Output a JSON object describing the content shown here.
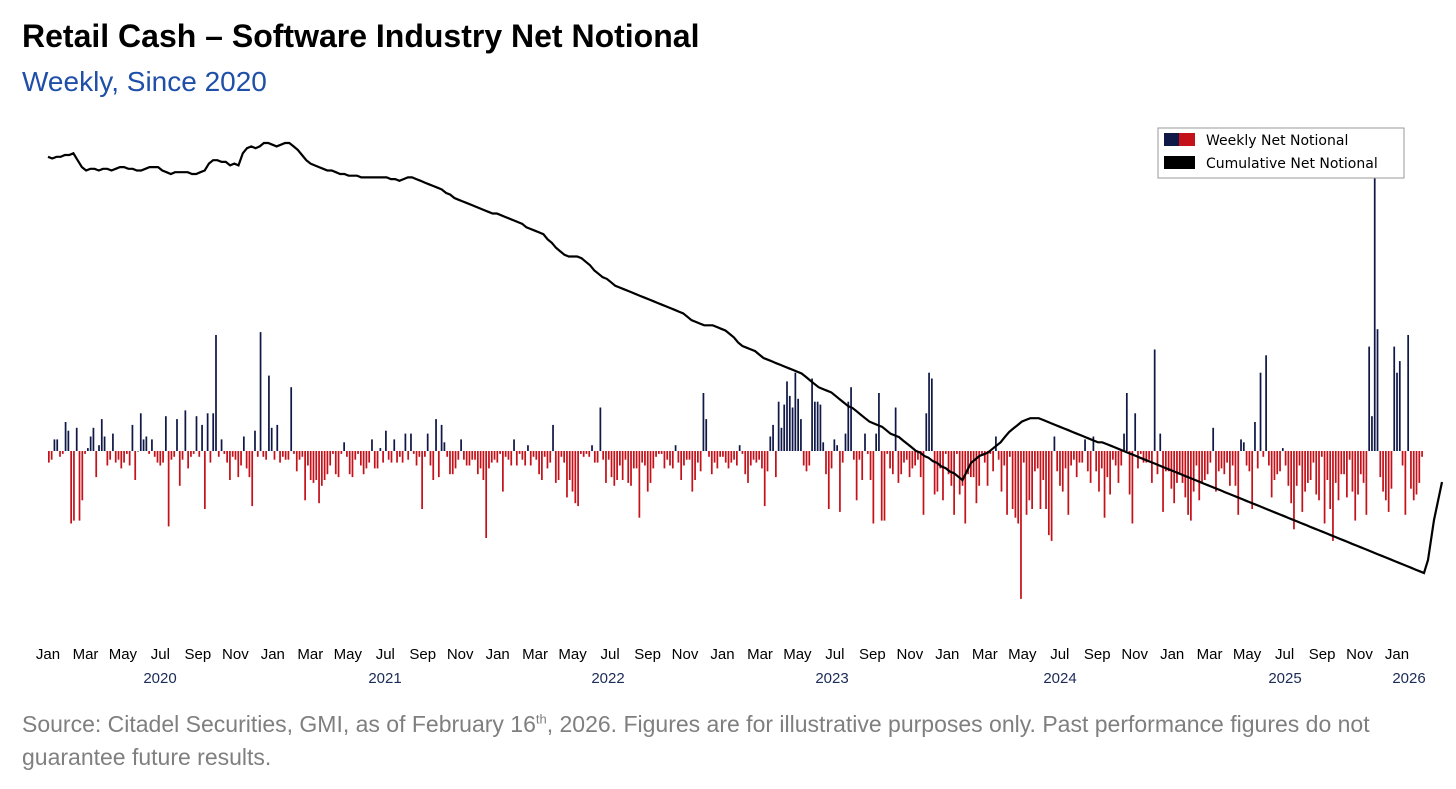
{
  "colors": {
    "positive_bar": "#0f1846",
    "negative_bar": "#c4121a",
    "line": "#000000",
    "title": "#000000",
    "subtitle": "#1f4fa8",
    "footnote": "#7f7f7f"
  },
  "chart_data": {
    "type": "bar+line",
    "title": "Retail Cash – Software Industry Net Notional",
    "subtitle": "Weekly, Since 2020",
    "legend": {
      "placement": "top-right",
      "entries": [
        "Weekly Net Notional",
        "Cumulative Net Notional"
      ]
    },
    "x_axis": {
      "month_ticks": [
        "Jan",
        "Mar",
        "May",
        "Jul",
        "Sep",
        "Nov",
        "Jan",
        "Mar",
        "May",
        "Jul",
        "Sep",
        "Nov",
        "Jan",
        "Mar",
        "May",
        "Jul",
        "Sep",
        "Nov",
        "Jan",
        "Mar",
        "May",
        "Jul",
        "Sep",
        "Nov",
        "Jan",
        "Mar",
        "May",
        "Jul",
        "Sep",
        "Nov",
        "Jan",
        "Mar",
        "May",
        "Jul",
        "Sep",
        "Nov",
        "Jan"
      ],
      "year_ticks": [
        "2020",
        "2021",
        "2022",
        "2023",
        "2024",
        "2025",
        "2026"
      ],
      "range_weeks": [
        0,
        317
      ]
    },
    "y_axis": {
      "visible": false,
      "bars_range": [
        -100,
        100
      ],
      "line_range": [
        -100,
        100
      ],
      "grid": false
    },
    "series": [
      {
        "name": "Weekly Net Notional",
        "type": "bar",
        "note": "approximate relative values, 1 bar per week",
        "values": [
          -4,
          -3,
          4,
          4,
          -2,
          -1,
          10,
          7,
          -25,
          -24,
          8,
          -24,
          -17,
          -1,
          1,
          5,
          8,
          -9,
          2,
          11,
          5,
          -5,
          -3,
          6,
          -4,
          -3,
          -6,
          -4,
          -1,
          -5,
          9,
          -10,
          0,
          13,
          4,
          5,
          -1,
          4,
          -2,
          -4,
          -5,
          -4,
          12,
          -26,
          -3,
          -2,
          11,
          -12,
          -3,
          14,
          -6,
          -2,
          -1,
          12,
          -2,
          9,
          -20,
          13,
          -4,
          13,
          40,
          -2,
          4,
          -1,
          -4,
          -10,
          -2,
          -3,
          -9,
          -5,
          5,
          -6,
          -9,
          -19,
          7,
          -2,
          41,
          -2,
          -3,
          26,
          8,
          -3,
          9,
          -4,
          -2,
          -3,
          -3,
          22,
          -1,
          -7,
          -3,
          -2,
          -17,
          -5,
          -10,
          -11,
          -10,
          -18,
          -12,
          -10,
          -8,
          -5,
          -1,
          -8,
          -9,
          -1,
          3,
          -2,
          -8,
          -9,
          -3,
          -1,
          -5,
          -8,
          -6,
          -4,
          4,
          -6,
          -6,
          1,
          -4,
          7,
          -3,
          -4,
          4,
          -4,
          -2,
          -4,
          6,
          -3,
          6,
          -1,
          -5,
          -2,
          -20,
          -2,
          6,
          -5,
          -10,
          11,
          -9,
          9,
          3,
          -2,
          -8,
          -8,
          -6,
          -3,
          4,
          -3,
          -5,
          -5,
          -3,
          -3,
          -8,
          -6,
          -10,
          -30,
          -6,
          -4,
          -3,
          -4,
          -1,
          -14,
          -2,
          -3,
          -5,
          4,
          -5,
          -1,
          -3,
          -5,
          2,
          -5,
          -2,
          -3,
          -8,
          -10,
          -2,
          -6,
          -4,
          9,
          -11,
          -10,
          -2,
          -4,
          -16,
          -10,
          -14,
          -18,
          -19,
          -1,
          -2,
          -1,
          -2,
          2,
          -4,
          -4,
          15,
          -3,
          -11,
          -3,
          -9,
          -12,
          -10,
          -5,
          -10,
          -3,
          -11,
          -12,
          -6,
          -6,
          -23,
          -4,
          -5,
          -14,
          -11,
          -6,
          -2,
          -1,
          -1,
          -6,
          -3,
          -5,
          -6,
          2,
          -4,
          -10,
          -5,
          -3,
          -3,
          -14,
          -10,
          -4,
          -7,
          20,
          11,
          -2,
          -8,
          -4,
          -6,
          -2,
          -2,
          -4,
          -6,
          -4,
          -3,
          -5,
          2,
          -1,
          -8,
          -11,
          -5,
          -3,
          -4,
          -3,
          -6,
          -19,
          -7,
          5,
          9,
          -9,
          17,
          8,
          16,
          24,
          19,
          15,
          27,
          18,
          11,
          -5,
          -7,
          -5,
          25,
          17,
          17,
          16,
          3,
          -8,
          -20,
          -6,
          4,
          2,
          -21,
          -4,
          6,
          17,
          22,
          -3,
          -17,
          -3,
          -10,
          6,
          -1,
          -10,
          -25,
          6,
          20,
          -24,
          -24,
          -1,
          -6,
          -8,
          15,
          -11,
          -8,
          -4,
          -3,
          -9,
          -6,
          -5,
          -3,
          -9,
          -22,
          13,
          27,
          25,
          -15,
          -14,
          -6,
          -17,
          -1,
          -8,
          -12,
          -22,
          -1,
          -15,
          -12,
          -25,
          -8,
          -9,
          -9,
          -18,
          -12,
          -1,
          -4,
          -12,
          -1,
          -7,
          5,
          -3,
          -14,
          -5,
          -22,
          -2,
          -20,
          -23,
          -25,
          -51,
          -4,
          -22,
          -17,
          -20,
          -7,
          -6,
          -20,
          -10,
          -20,
          -29,
          -31,
          5,
          -7,
          -12,
          -14,
          -6,
          -22,
          -5,
          -3,
          -9,
          -4,
          -4,
          4,
          -7,
          -11,
          5,
          -7,
          -14,
          -6,
          -23,
          -9,
          -15,
          -3,
          -5,
          -11,
          -5,
          6,
          20,
          -15,
          -25,
          13,
          -6,
          -1,
          -4,
          -4,
          -3,
          -11,
          35,
          -8,
          6,
          -21,
          -7,
          -7,
          -13,
          -18,
          -11,
          -8,
          -11,
          -16,
          -22,
          -24,
          -14,
          -5,
          -17,
          -11,
          -10,
          -8,
          -4,
          8,
          -14,
          -7,
          -6,
          -8,
          -4,
          -12,
          -5,
          -12,
          -22,
          4,
          3,
          -5,
          -7,
          -20,
          10,
          -6,
          27,
          -2,
          33,
          -5,
          -16,
          -10,
          -8,
          -7,
          1,
          -5,
          -12,
          -18,
          -27,
          -12,
          -5,
          -21,
          -14,
          -11,
          -10,
          -4,
          -15,
          -17,
          -2,
          -25,
          -10,
          -20,
          -31,
          -11,
          -17,
          -8,
          -8,
          -16,
          -3,
          -14,
          -24,
          -15,
          -8,
          -11,
          -22,
          36,
          12,
          100,
          42,
          -9,
          -14,
          -17,
          -21,
          -13,
          36,
          27,
          31,
          -5,
          -22,
          40,
          -13,
          -17,
          -15,
          -11,
          -2
        ]
      },
      {
        "name": "Cumulative Net Notional",
        "type": "line",
        "note": "approximate relative values, sampled weekly",
        "values": [
          88,
          87,
          88,
          88,
          89,
          89,
          90,
          86,
          82,
          80,
          81,
          81,
          80,
          81,
          81,
          80,
          81,
          82,
          82,
          81,
          81,
          80,
          80,
          81,
          82,
          82,
          82,
          80,
          79,
          78,
          79,
          79,
          79,
          79,
          78,
          78,
          79,
          80,
          84,
          86,
          86,
          85,
          85,
          83,
          84,
          83,
          90,
          93,
          94,
          93,
          94,
          96,
          96,
          95,
          94,
          95,
          96,
          96,
          94,
          92,
          89,
          86,
          84,
          83,
          82,
          81,
          80,
          80,
          79,
          78,
          78,
          77,
          77,
          77,
          76,
          76,
          76,
          76,
          76,
          76,
          76,
          75,
          75,
          74,
          75,
          76,
          76,
          75,
          74,
          73,
          72,
          71,
          70,
          69,
          67,
          66,
          64,
          63,
          62,
          61,
          60,
          59,
          58,
          57,
          56,
          55,
          55,
          54,
          53,
          52,
          51,
          50,
          49,
          47,
          46,
          45,
          44,
          43,
          40,
          38,
          35,
          33,
          31,
          30,
          30,
          30,
          29,
          27,
          25,
          22,
          20,
          18,
          17,
          15,
          13,
          12,
          11,
          10,
          9,
          8,
          7,
          6,
          5,
          4,
          3,
          2,
          1,
          0,
          -1,
          -2,
          -3,
          -5,
          -7,
          -8,
          -9,
          -10,
          -10,
          -10,
          -11,
          -12,
          -13,
          -15,
          -17,
          -20,
          -22,
          -23,
          -24,
          -25,
          -27,
          -29,
          -30,
          -31,
          -32,
          -33,
          -34,
          -35,
          -36,
          -37,
          -38,
          -40,
          -42,
          -44,
          -46,
          -47,
          -48,
          -49,
          -51,
          -53,
          -55,
          -57,
          -58,
          -60,
          -62,
          -64,
          -66,
          -67,
          -68,
          -69,
          -71,
          -73,
          -74,
          -75,
          -77,
          -79,
          -81,
          -83,
          -84,
          -86,
          -87,
          -89,
          -90,
          -92,
          -93,
          -95,
          -96,
          -98,
          -100,
          -95,
          -90,
          -88,
          -86,
          -85,
          -84,
          -82,
          -80,
          -78,
          -75,
          -72,
          -70,
          -68,
          -66,
          -65,
          -64,
          -64,
          -64,
          -65,
          -66,
          -67,
          -68,
          -69,
          -70,
          -71,
          -72,
          -73,
          -74,
          -75,
          -76,
          -77,
          -78,
          -78,
          -79,
          -80,
          -81,
          -82,
          -83,
          -84,
          -85,
          -86,
          -87,
          -88,
          -89,
          -90,
          -91,
          -92,
          -93,
          -94,
          -95,
          -96,
          -97,
          -98,
          -99,
          -100,
          -101,
          -102,
          -103,
          -104,
          -105,
          -106,
          -107,
          -108,
          -109,
          -110,
          -111,
          -112,
          -113,
          -114,
          -115,
          -116,
          -117,
          -118,
          -119,
          -120,
          -121,
          -122,
          -123,
          -124,
          -125,
          -126,
          -127,
          -128,
          -129,
          -130,
          -131,
          -132,
          -133,
          -134,
          -135,
          -136,
          -137,
          -138,
          -139,
          -140,
          -141,
          -142,
          -143,
          -144,
          -145,
          -146,
          -147,
          -148,
          -149,
          -150,
          -151,
          -152,
          -153,
          -154
        ]
      }
    ]
  },
  "footnote": {
    "line1_before_sup": "Source: Citadel Securities, GMI, as of February 16",
    "sup": "th",
    "line1_after_sup": ", 2026. Figures are for illustrative purposes only. Past performance figures",
    "line2": "do not guarantee future results."
  }
}
